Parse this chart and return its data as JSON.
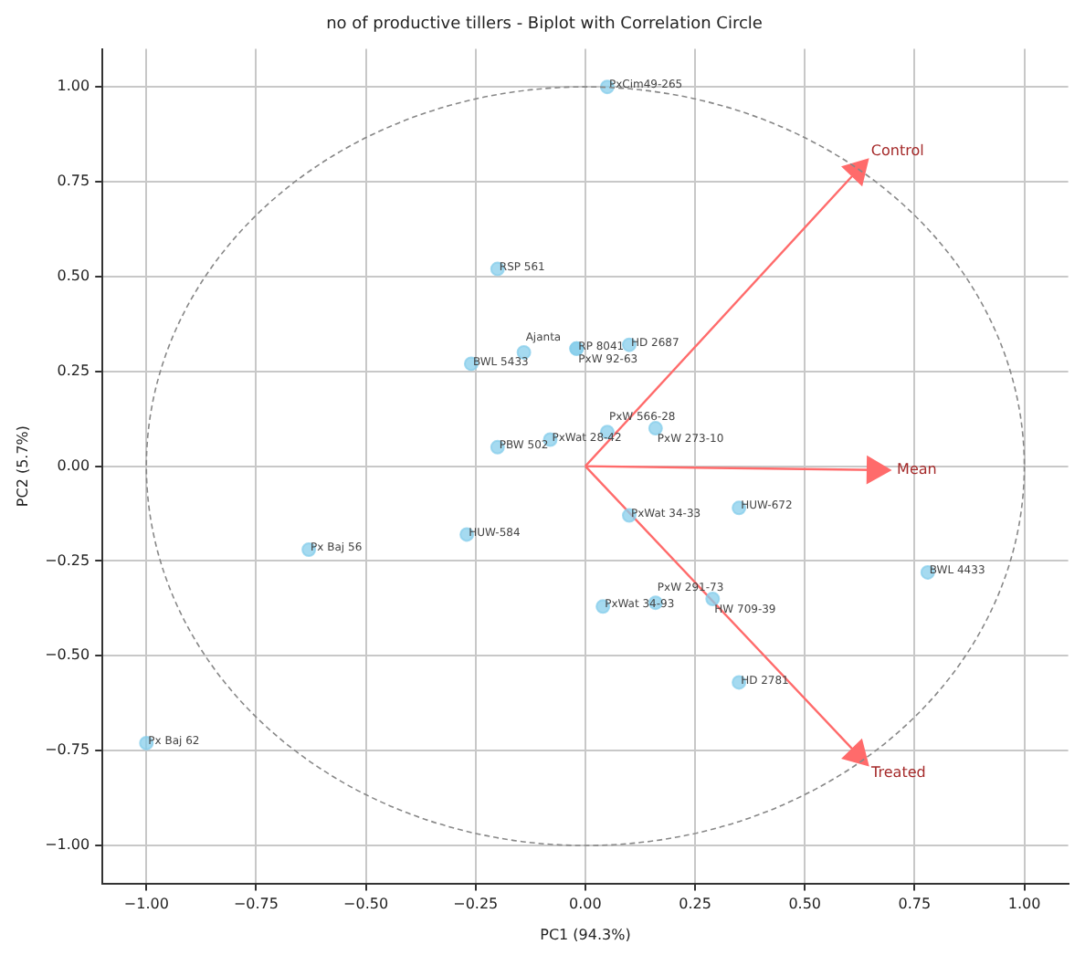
{
  "chart_data": {
    "type": "scatter",
    "title": "no of productive tillers - Biplot with Correlation Circle",
    "xlabel": "PC1 (94.3%)",
    "ylabel": "PC2 (5.7%)",
    "xlim": [
      -1.1,
      1.1
    ],
    "ylim": [
      -1.1,
      1.1
    ],
    "xticks": [
      {
        "value": -1,
        "label": "−1.00"
      },
      {
        "value": -0.75,
        "label": "−0.75"
      },
      {
        "value": -0.5,
        "label": "−0.50"
      },
      {
        "value": -0.25,
        "label": "−0.25"
      },
      {
        "value": 0,
        "label": "0.00"
      },
      {
        "value": 0.25,
        "label": "0.25"
      },
      {
        "value": 0.5,
        "label": "0.50"
      },
      {
        "value": 0.75,
        "label": "0.75"
      },
      {
        "value": 1,
        "label": "1.00"
      }
    ],
    "yticks": [
      {
        "value": -1,
        "label": "−1.00"
      },
      {
        "value": -0.75,
        "label": "−0.75"
      },
      {
        "value": -0.5,
        "label": "−0.50"
      },
      {
        "value": -0.25,
        "label": "−0.25"
      },
      {
        "value": 0,
        "label": "0.00"
      },
      {
        "value": 0.25,
        "label": "0.25"
      },
      {
        "value": 0.5,
        "label": "0.50"
      },
      {
        "value": 0.75,
        "label": "0.75"
      },
      {
        "value": 1,
        "label": "1.00"
      }
    ],
    "grid": true,
    "legend": false,
    "marker": "circle",
    "series": [
      {
        "color": "#87ceeb",
        "x": [
          0.05,
          -0.2,
          -0.26,
          -0.14,
          -0.02,
          -0.02,
          0.1,
          -0.2,
          -0.08,
          0.05,
          0.16,
          0.35,
          0.1,
          0.78,
          0.04,
          0.16,
          0.29,
          0.35,
          -0.27,
          -0.63,
          -1.0
        ],
        "values": [
          1.0,
          0.52,
          0.27,
          0.3,
          0.31,
          0.31,
          0.32,
          0.05,
          0.07,
          0.09,
          0.1,
          -0.11,
          -0.13,
          -0.28,
          -0.37,
          -0.36,
          -0.35,
          -0.57,
          -0.18,
          -0.22,
          -0.73
        ],
        "value_labels": [
          "PxCim49-265",
          "RSP 561",
          "BWL 5433",
          "Ajanta",
          "RP 8041",
          "PxW 92-63",
          "HD 2687",
          "PBW 502",
          "PxWat 28-42",
          "PxW 566-28",
          "PxW 273-10",
          "HUW-672",
          "PxWat 34-33",
          "BWL 4433",
          "PxWat 34-93",
          "PxW 291-73",
          "HW 709-39",
          "HD 2781",
          "HUW-584",
          "Px Baj 56",
          "Px Baj 62"
        ]
      },
      {
        "type": "line",
        "name": "Control",
        "color": "#ff6b6b",
        "marker": "triangle",
        "x": [
          0,
          0.62
        ],
        "values": [
          0,
          0.78
        ]
      },
      {
        "type": "line",
        "name": "Mean",
        "color": "#ff6b6b",
        "marker": "triangle",
        "x": [
          0,
          0.66
        ],
        "values": [
          0,
          -0.01
        ]
      },
      {
        "type": "line",
        "name": "Treated",
        "color": "#ff6b6b",
        "marker": "triangle",
        "x": [
          0,
          0.62
        ],
        "values": [
          0,
          -0.76
        ]
      }
    ]
  }
}
